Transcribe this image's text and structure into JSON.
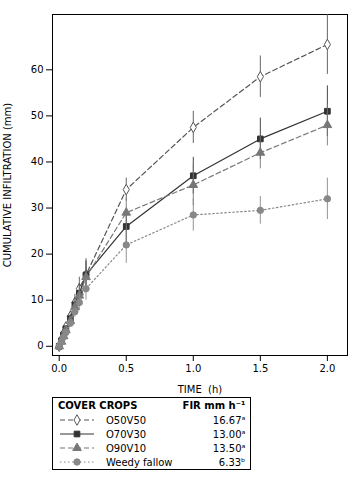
{
  "chart_data": {
    "type": "line",
    "xlabel": "TIME  (h)",
    "ylabel": "CUMULATIVE INFILTRATION (mm)",
    "x": [
      0.0,
      0.017,
      0.033,
      0.05,
      0.083,
      0.117,
      0.15,
      0.2,
      0.5,
      1.0,
      1.5,
      2.0
    ],
    "xlim": [
      -0.05,
      2.15
    ],
    "xticks": [
      {
        "value": 0,
        "label": "0.0"
      },
      0.5,
      {
        "value": 1.0,
        "label": "1.0"
      },
      1.5,
      {
        "value": 2.0,
        "label": "2.0"
      }
    ],
    "ylim": [
      -2,
      72
    ],
    "yticks": [
      0,
      10,
      20,
      30,
      40,
      50,
      60
    ],
    "legend": "bottom",
    "legend_title": [
      "COVER CROPS",
      "FIR mm h⁻¹"
    ],
    "series": [
      {
        "name": "O50V50",
        "color": "#555555",
        "line_style": "dashed",
        "marker": "diamond_open",
        "values": [
          0.0,
          1.5,
          2.8,
          4.2,
          6.5,
          9.5,
          12.5,
          15.5,
          34.0,
          47.5,
          58.5,
          65.5
        ],
        "errors": [
          0.0,
          0.5,
          0.5,
          0.8,
          1.2,
          1.8,
          2.5,
          3.5,
          2.5,
          3.5,
          4.5,
          6.5
        ],
        "legend_value": "16.67ᵃ"
      },
      {
        "name": "O70V30",
        "color": "#333333",
        "line_style": "solid",
        "marker": "square",
        "values": [
          0.0,
          1.2,
          2.5,
          3.8,
          6.0,
          9.0,
          11.5,
          15.5,
          26.0,
          37.0,
          45.0,
          51.0
        ],
        "errors": [
          0.0,
          0.4,
          0.5,
          0.7,
          1.0,
          1.5,
          2.0,
          3.0,
          3.5,
          4.0,
          4.5,
          5.5
        ],
        "legend_value": "13.00ᵃ"
      },
      {
        "name": "O90V10",
        "color": "#777777",
        "line_style": "dashed",
        "marker": "triangle",
        "values": [
          0.0,
          1.0,
          2.2,
          3.5,
          5.5,
          8.5,
          11.0,
          15.0,
          29.0,
          35.0,
          42.0,
          48.0
        ],
        "errors": [
          0.0,
          0.4,
          0.5,
          0.7,
          1.0,
          1.5,
          2.2,
          2.8,
          3.0,
          4.5,
          3.5,
          4.5
        ],
        "legend_value": "13.50ᵃ"
      },
      {
        "name": "Weedy fallow",
        "color": "#888888",
        "line_style": "dotted",
        "marker": "circle",
        "values": [
          0.0,
          1.0,
          2.0,
          3.0,
          5.0,
          7.5,
          9.5,
          12.5,
          22.0,
          28.5,
          29.5,
          32.0
        ],
        "errors": [
          0.0,
          0.3,
          0.5,
          0.6,
          0.8,
          1.2,
          1.8,
          2.5,
          4.0,
          3.5,
          3.0,
          4.5
        ],
        "legend_value": "6.33ᵇ"
      }
    ]
  }
}
